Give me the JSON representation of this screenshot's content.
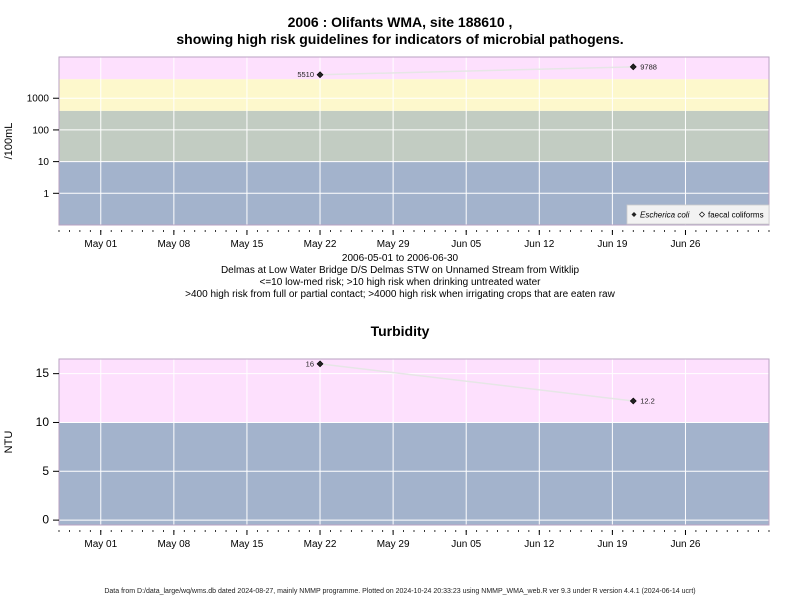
{
  "chart_data": [
    {
      "type": "scatter",
      "title_line1": "2006 : Olifants WMA, site 188610 ,",
      "title_line2": "showing high risk guidelines for indicators of microbial pathogens.",
      "ylabel": "/100mL",
      "y_scale": "log10",
      "ylim": [
        0.1,
        20000
      ],
      "yticks": [
        1,
        10,
        100,
        1000
      ],
      "ytick_labels": [
        "1",
        "10",
        "100",
        "1000"
      ],
      "xlim": [
        "2006-04-27",
        "2006-07-04"
      ],
      "xticks": [
        "2006-05-01",
        "2006-05-08",
        "2006-05-15",
        "2006-05-22",
        "2006-05-29",
        "2006-06-05",
        "2006-06-12",
        "2006-06-19",
        "2006-06-26"
      ],
      "xtick_labels": [
        "May 01",
        "May 08",
        "May 15",
        "May 22",
        "May 29",
        "Jun 05",
        "Jun 12",
        "Jun 19",
        "Jun 26"
      ],
      "bands": [
        {
          "from": 0.1,
          "to": 10,
          "color": "#a3b3cc"
        },
        {
          "from": 10,
          "to": 400,
          "color": "#c2ccc2"
        },
        {
          "from": 400,
          "to": 4000,
          "color": "#fdf8cc"
        },
        {
          "from": 4000,
          "to": 20000,
          "color": "#fde0fd"
        }
      ],
      "series": [
        {
          "name": "Escherica coli",
          "marker": "filled-diamond",
          "points": [
            {
              "x": "2006-05-22",
              "y": 5510,
              "label": "5510"
            },
            {
              "x": "2006-06-21",
              "y": 9788,
              "label": "9788"
            }
          ]
        }
      ],
      "legend": {
        "position": "bottom-right",
        "entries": [
          {
            "label": "Escherica coli",
            "italic": true,
            "marker": "filled-diamond"
          },
          {
            "label": "faecal coliforms",
            "italic": false,
            "marker": "open-diamond"
          }
        ]
      },
      "caption": [
        "2006-05-01 to 2006-06-30",
        "Delmas at Low Water Bridge D/S Delmas STW on Unnamed Stream from Witklip",
        "<=10 low-med risk; >10 high risk when drinking untreated water",
        ">400 high risk from full or partial contact; >4000 high risk when irrigating crops that are eaten raw"
      ]
    },
    {
      "type": "scatter",
      "title": "Turbidity",
      "ylabel": "NTU",
      "ylim": [
        -0.5,
        16.5
      ],
      "yticks": [
        0,
        5,
        10,
        15
      ],
      "ytick_labels": [
        "0",
        "5",
        "10",
        "15"
      ],
      "xlim": [
        "2006-04-27",
        "2006-07-04"
      ],
      "xticks": [
        "2006-05-01",
        "2006-05-08",
        "2006-05-15",
        "2006-05-22",
        "2006-05-29",
        "2006-06-05",
        "2006-06-12",
        "2006-06-19",
        "2006-06-26"
      ],
      "xtick_labels": [
        "May 01",
        "May 08",
        "May 15",
        "May 22",
        "May 29",
        "Jun 05",
        "Jun 12",
        "Jun 19",
        "Jun 26"
      ],
      "bands": [
        {
          "from": -0.5,
          "to": 10,
          "color": "#a3b3cc"
        },
        {
          "from": 10,
          "to": 16.5,
          "color": "#fde0fd"
        }
      ],
      "series": [
        {
          "name": "",
          "marker": "filled-diamond",
          "points": [
            {
              "x": "2006-05-22",
              "y": 16,
              "label": "16"
            },
            {
              "x": "2006-06-21",
              "y": 12.2,
              "label": "12.2"
            }
          ]
        }
      ]
    }
  ],
  "footer": "Data from D:/data_large/wq/wms.db dated 2024-08-27, mainly NMMP programme. Plotted on 2024-10-24 20:33:23 using NMMP_WMA_web.R ver 9.3 under R version 4.4.1 (2024-06-14 ucrt)"
}
